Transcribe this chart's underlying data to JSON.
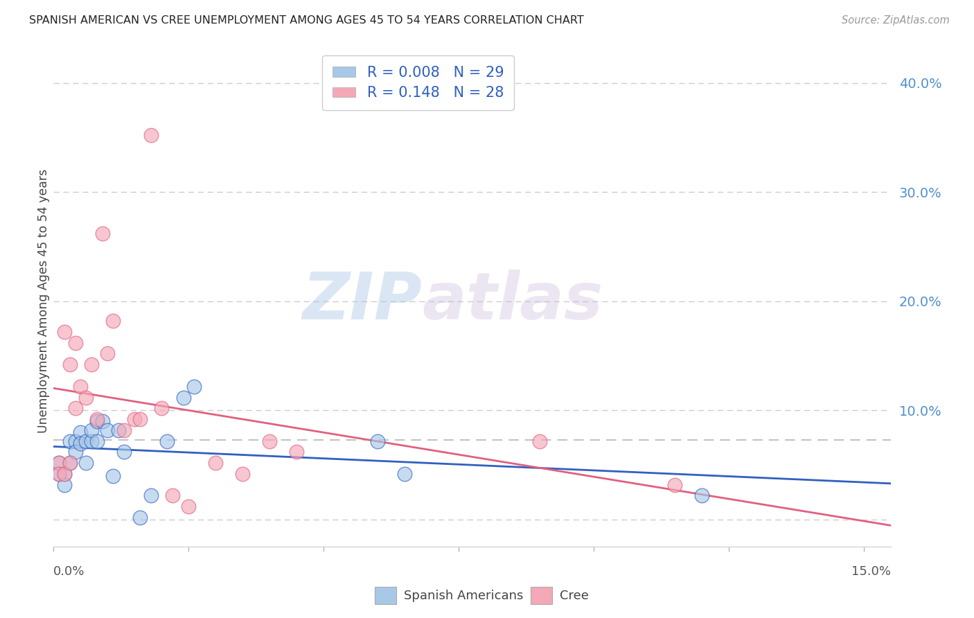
{
  "title": "SPANISH AMERICAN VS CREE UNEMPLOYMENT AMONG AGES 45 TO 54 YEARS CORRELATION CHART",
  "source": "Source: ZipAtlas.com",
  "ylabel": "Unemployment Among Ages 45 to 54 years",
  "xlim": [
    0.0,
    0.155
  ],
  "ylim": [
    -0.025,
    0.425
  ],
  "color_blue": "#a8c8e8",
  "color_pink": "#f4a8b8",
  "line_blue": "#3060c0",
  "line_pink": "#e06080",
  "background": "#ffffff",
  "legend_R1": "R = 0.008",
  "legend_N1": "N = 29",
  "legend_R2": "R = 0.148",
  "legend_N2": "N = 28",
  "legend_label1": "Spanish Americans",
  "legend_label2": "Cree",
  "watermark_zip": "ZIP",
  "watermark_atlas": "atlas",
  "grid_color": "#cccccc",
  "dashed_line_y": 0.073,
  "y_ticks": [
    0.0,
    0.1,
    0.2,
    0.3,
    0.4
  ],
  "x_ticks": [
    0.0,
    0.025,
    0.05,
    0.075,
    0.1,
    0.125,
    0.15
  ],
  "spanish_x": [
    0.001,
    0.001,
    0.002,
    0.002,
    0.003,
    0.003,
    0.004,
    0.004,
    0.005,
    0.005,
    0.006,
    0.006,
    0.007,
    0.007,
    0.008,
    0.008,
    0.009,
    0.01,
    0.011,
    0.012,
    0.013,
    0.016,
    0.018,
    0.021,
    0.024,
    0.026,
    0.06,
    0.065,
    0.12
  ],
  "spanish_y": [
    0.052,
    0.042,
    0.042,
    0.032,
    0.072,
    0.052,
    0.072,
    0.062,
    0.08,
    0.07,
    0.072,
    0.052,
    0.072,
    0.082,
    0.072,
    0.09,
    0.09,
    0.082,
    0.04,
    0.082,
    0.062,
    0.002,
    0.022,
    0.072,
    0.112,
    0.122,
    0.072,
    0.042,
    0.022
  ],
  "cree_x": [
    0.001,
    0.001,
    0.002,
    0.002,
    0.003,
    0.003,
    0.004,
    0.004,
    0.005,
    0.006,
    0.007,
    0.008,
    0.009,
    0.01,
    0.011,
    0.013,
    0.015,
    0.016,
    0.018,
    0.02,
    0.022,
    0.025,
    0.03,
    0.035,
    0.04,
    0.045,
    0.09,
    0.115
  ],
  "cree_y": [
    0.052,
    0.042,
    0.042,
    0.172,
    0.052,
    0.142,
    0.162,
    0.102,
    0.122,
    0.112,
    0.142,
    0.092,
    0.262,
    0.152,
    0.182,
    0.082,
    0.092,
    0.092,
    0.352,
    0.102,
    0.022,
    0.012,
    0.052,
    0.042,
    0.072,
    0.062,
    0.072,
    0.032
  ]
}
